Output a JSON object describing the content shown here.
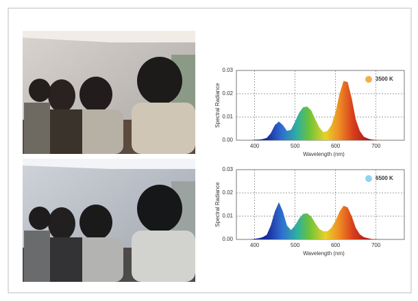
{
  "chart_data": [
    {
      "type": "area",
      "x_label": "Wavelength (nm)",
      "y_label": "Spectral Radiance",
      "xlim": [
        355,
        770
      ],
      "ylim": [
        0,
        0.03
      ],
      "xticks": [
        400,
        500,
        600,
        700
      ],
      "yticks": [
        {
          "value": 0,
          "label": "0.00"
        },
        0.01,
        0.02,
        0.03
      ],
      "grid": true,
      "x": [
        380,
        390,
        400,
        410,
        420,
        430,
        440,
        450,
        460,
        470,
        480,
        490,
        500,
        510,
        520,
        530,
        540,
        550,
        560,
        570,
        580,
        590,
        600,
        610,
        620,
        630,
        640,
        650,
        660,
        670,
        680,
        690,
        700,
        710,
        720
      ],
      "series": [
        {
          "name": "3500 K",
          "color": "#f2b04a",
          "values": [
            0,
            0,
            0.0002,
            0.0003,
            0.0005,
            0.001,
            0.003,
            0.0065,
            0.008,
            0.0065,
            0.004,
            0.0045,
            0.008,
            0.0118,
            0.0142,
            0.0145,
            0.0128,
            0.009,
            0.0055,
            0.0035,
            0.004,
            0.0065,
            0.012,
            0.02,
            0.0255,
            0.025,
            0.018,
            0.009,
            0.004,
            0.0015,
            0.0007,
            0.0003,
            0.0001,
            0,
            0
          ]
        }
      ]
    },
    {
      "type": "area",
      "x_label": "Wavelength (nm)",
      "y_label": "Spectral Radiance",
      "xlim": [
        355,
        770
      ],
      "ylim": [
        0,
        0.03
      ],
      "xticks": [
        400,
        500,
        600,
        700
      ],
      "yticks": [
        {
          "value": 0,
          "label": "0.00"
        },
        0.01,
        0.02,
        0.03
      ],
      "grid": true,
      "x": [
        380,
        390,
        400,
        410,
        420,
        430,
        440,
        450,
        460,
        470,
        480,
        490,
        500,
        510,
        520,
        530,
        540,
        550,
        560,
        570,
        580,
        590,
        600,
        610,
        620,
        630,
        640,
        650,
        660,
        670,
        680,
        690,
        700,
        710,
        720
      ],
      "series": [
        {
          "name": "6500 K",
          "color": "#8fd3f0",
          "values": [
            0,
            0,
            0.0003,
            0.0005,
            0.001,
            0.002,
            0.006,
            0.012,
            0.016,
            0.012,
            0.006,
            0.004,
            0.006,
            0.009,
            0.011,
            0.0112,
            0.0098,
            0.007,
            0.0045,
            0.0035,
            0.0035,
            0.005,
            0.008,
            0.012,
            0.0145,
            0.0138,
            0.01,
            0.005,
            0.0022,
            0.001,
            0.0005,
            0.0002,
            0.0001,
            0,
            0
          ]
        }
      ]
    }
  ]
}
